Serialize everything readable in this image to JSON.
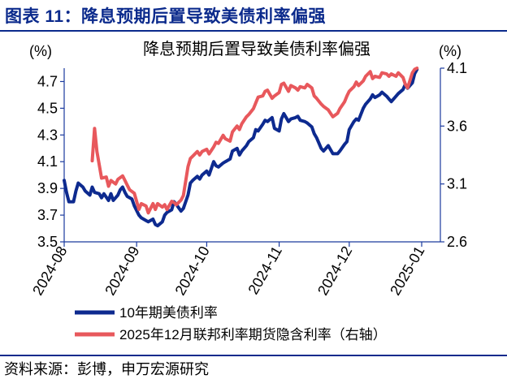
{
  "figure_title": "图表 11：降息预期后置导致美债利率偏强",
  "source_text": "资料来源：彭博，申万宏源研究",
  "colors": {
    "brand": "#0b2a8c",
    "series1": "#0d2a8f",
    "series2": "#e8585c",
    "axis": "#1a3a9e"
  },
  "chart_data": {
    "type": "line",
    "title": "降息预期后置导致美债利率偏强",
    "left_axis": {
      "unit_label": "(%)",
      "ylim": [
        3.5,
        4.8
      ],
      "ticks": [
        3.5,
        3.7,
        3.9,
        4.1,
        4.3,
        4.5,
        4.7
      ]
    },
    "right_axis": {
      "unit_label": "(%)",
      "ylim": [
        2.6,
        4.1
      ],
      "ticks": [
        2.6,
        3.1,
        3.6,
        4.1
      ]
    },
    "x_range": [
      0,
      161
    ],
    "x_ticks": [
      {
        "label": "2024-08",
        "x": 0
      },
      {
        "label": "2024-09",
        "x": 31
      },
      {
        "label": "2024-10",
        "x": 61
      },
      {
        "label": "2024-11",
        "x": 92
      },
      {
        "label": "2024-12",
        "x": 122
      },
      {
        "label": "2025-01",
        "x": 153
      }
    ],
    "series": [
      {
        "name": "10年期美债利率",
        "axis": "left",
        "points": [
          [
            0,
            3.96
          ],
          [
            1,
            3.87
          ],
          [
            2,
            3.8
          ],
          [
            4,
            3.8
          ],
          [
            5,
            3.88
          ],
          [
            6,
            3.94
          ],
          [
            8,
            3.91
          ],
          [
            9,
            3.88
          ],
          [
            11,
            3.85
          ],
          [
            12,
            3.91
          ],
          [
            13,
            3.87
          ],
          [
            15,
            3.86
          ],
          [
            16,
            3.83
          ],
          [
            17,
            3.86
          ],
          [
            19,
            3.81
          ],
          [
            20,
            3.86
          ],
          [
            21,
            3.81
          ],
          [
            23,
            3.85
          ],
          [
            24,
            3.89
          ],
          [
            25,
            3.91
          ],
          [
            26,
            3.87
          ],
          [
            27,
            3.84
          ],
          [
            29,
            3.82
          ],
          [
            30,
            3.77
          ],
          [
            32,
            3.7
          ],
          [
            33,
            3.68
          ],
          [
            35,
            3.66
          ],
          [
            36,
            3.65
          ],
          [
            38,
            3.67
          ],
          [
            39,
            3.63
          ],
          [
            40,
            3.62
          ],
          [
            42,
            3.65
          ],
          [
            43,
            3.7
          ],
          [
            44,
            3.72
          ],
          [
            46,
            3.74
          ],
          [
            47,
            3.8
          ],
          [
            48,
            3.78
          ],
          [
            50,
            3.73
          ],
          [
            51,
            3.75
          ],
          [
            53,
            3.85
          ],
          [
            54,
            3.94
          ],
          [
            55,
            3.96
          ],
          [
            57,
            3.99
          ],
          [
            58,
            3.97
          ],
          [
            59,
            4.0
          ],
          [
            61,
            4.03
          ],
          [
            62,
            4.0
          ],
          [
            64,
            4.1
          ],
          [
            65,
            4.07
          ],
          [
            66,
            4.06
          ],
          [
            68,
            4.09
          ],
          [
            69,
            4.1
          ],
          [
            71,
            4.12
          ],
          [
            72,
            4.18
          ],
          [
            74,
            4.2
          ],
          [
            75,
            4.15
          ],
          [
            76,
            4.18
          ],
          [
            78,
            4.22
          ],
          [
            79,
            4.25
          ],
          [
            81,
            4.28
          ],
          [
            82,
            4.34
          ],
          [
            83,
            4.33
          ],
          [
            85,
            4.38
          ],
          [
            86,
            4.41
          ],
          [
            87,
            4.4
          ],
          [
            89,
            4.43
          ],
          [
            90,
            4.35
          ],
          [
            92,
            4.33
          ],
          [
            93,
            4.42
          ],
          [
            94,
            4.46
          ],
          [
            96,
            4.4
          ],
          [
            97,
            4.42
          ],
          [
            99,
            4.43
          ],
          [
            100,
            4.44
          ],
          [
            101,
            4.41
          ],
          [
            103,
            4.4
          ],
          [
            104,
            4.39
          ],
          [
            106,
            4.36
          ],
          [
            107,
            4.31
          ],
          [
            108,
            4.28
          ],
          [
            110,
            4.2
          ],
          [
            111,
            4.18
          ],
          [
            113,
            4.22
          ],
          [
            114,
            4.19
          ],
          [
            115,
            4.16
          ],
          [
            117,
            4.16
          ],
          [
            118,
            4.18
          ],
          [
            120,
            4.23
          ],
          [
            121,
            4.25
          ],
          [
            122,
            4.34
          ],
          [
            124,
            4.4
          ],
          [
            125,
            4.42
          ],
          [
            126,
            4.41
          ],
          [
            128,
            4.5
          ],
          [
            129,
            4.53
          ],
          [
            131,
            4.57
          ],
          [
            132,
            4.6
          ],
          [
            133,
            4.58
          ],
          [
            135,
            4.6
          ],
          [
            136,
            4.62
          ],
          [
            138,
            4.59
          ],
          [
            139,
            4.57
          ],
          [
            140,
            4.55
          ],
          [
            142,
            4.59
          ],
          [
            143,
            4.61
          ],
          [
            145,
            4.64
          ],
          [
            146,
            4.68
          ],
          [
            147,
            4.65
          ],
          [
            149,
            4.69
          ],
          [
            150,
            4.76
          ],
          [
            151,
            4.79
          ]
        ]
      },
      {
        "name": "2025年12月联邦利率期货隐含利率（右轴）",
        "axis": "right",
        "points": [
          [
            12,
            3.3
          ],
          [
            13,
            3.58
          ],
          [
            14,
            3.38
          ],
          [
            16,
            3.15
          ],
          [
            18,
            3.16
          ],
          [
            19,
            3.08
          ],
          [
            20,
            3.13
          ],
          [
            22,
            3.1
          ],
          [
            23,
            3.14
          ],
          [
            25,
            3.17
          ],
          [
            26,
            3.13
          ],
          [
            27,
            3.09
          ],
          [
            28,
            3.05
          ],
          [
            30,
            3.02
          ],
          [
            32,
            2.88
          ],
          [
            33,
            2.93
          ],
          [
            35,
            2.91
          ],
          [
            36,
            2.85
          ],
          [
            38,
            2.93
          ],
          [
            39,
            2.88
          ],
          [
            40,
            2.93
          ],
          [
            42,
            2.9
          ],
          [
            43,
            2.92
          ],
          [
            44,
            2.88
          ],
          [
            46,
            2.95
          ],
          [
            47,
            2.94
          ],
          [
            48,
            2.92
          ],
          [
            50,
            2.96
          ],
          [
            51,
            3.0
          ],
          [
            53,
            3.25
          ],
          [
            54,
            3.32
          ],
          [
            55,
            3.34
          ],
          [
            57,
            3.38
          ],
          [
            58,
            3.35
          ],
          [
            59,
            3.38
          ],
          [
            61,
            3.4
          ],
          [
            62,
            3.36
          ],
          [
            64,
            3.42
          ],
          [
            65,
            3.46
          ],
          [
            66,
            3.45
          ],
          [
            68,
            3.52
          ],
          [
            69,
            3.49
          ],
          [
            71,
            3.47
          ],
          [
            72,
            3.55
          ],
          [
            74,
            3.6
          ],
          [
            75,
            3.57
          ],
          [
            76,
            3.62
          ],
          [
            78,
            3.68
          ],
          [
            79,
            3.7
          ],
          [
            81,
            3.75
          ],
          [
            82,
            3.8
          ],
          [
            83,
            3.85
          ],
          [
            85,
            3.86
          ],
          [
            86,
            3.9
          ],
          [
            87,
            3.91
          ],
          [
            89,
            3.84
          ],
          [
            90,
            3.86
          ],
          [
            92,
            3.89
          ],
          [
            93,
            3.96
          ],
          [
            94,
            3.97
          ],
          [
            96,
            3.9
          ],
          [
            97,
            3.95
          ],
          [
            99,
            3.93
          ],
          [
            100,
            3.91
          ],
          [
            101,
            3.94
          ],
          [
            103,
            3.93
          ],
          [
            104,
            3.96
          ],
          [
            106,
            3.93
          ],
          [
            107,
            3.86
          ],
          [
            108,
            3.84
          ],
          [
            110,
            3.79
          ],
          [
            111,
            3.77
          ],
          [
            113,
            3.74
          ],
          [
            114,
            3.71
          ],
          [
            115,
            3.68
          ],
          [
            117,
            3.71
          ],
          [
            118,
            3.75
          ],
          [
            120,
            3.81
          ],
          [
            121,
            3.86
          ],
          [
            122,
            3.9
          ],
          [
            124,
            3.94
          ],
          [
            125,
            3.98
          ],
          [
            126,
            3.95
          ],
          [
            128,
            3.99
          ],
          [
            129,
            4.03
          ],
          [
            131,
            4.07
          ],
          [
            132,
            4.01
          ],
          [
            133,
            4.03
          ],
          [
            135,
            4.02
          ],
          [
            136,
            4.06
          ],
          [
            138,
            4.05
          ],
          [
            139,
            4.03
          ],
          [
            140,
            4.05
          ],
          [
            142,
            4.03
          ],
          [
            143,
            4.06
          ],
          [
            145,
            4.02
          ],
          [
            146,
            3.96
          ],
          [
            147,
            3.93
          ],
          [
            149,
            4.06
          ],
          [
            150,
            4.09
          ],
          [
            151,
            4.1
          ]
        ]
      }
    ]
  }
}
